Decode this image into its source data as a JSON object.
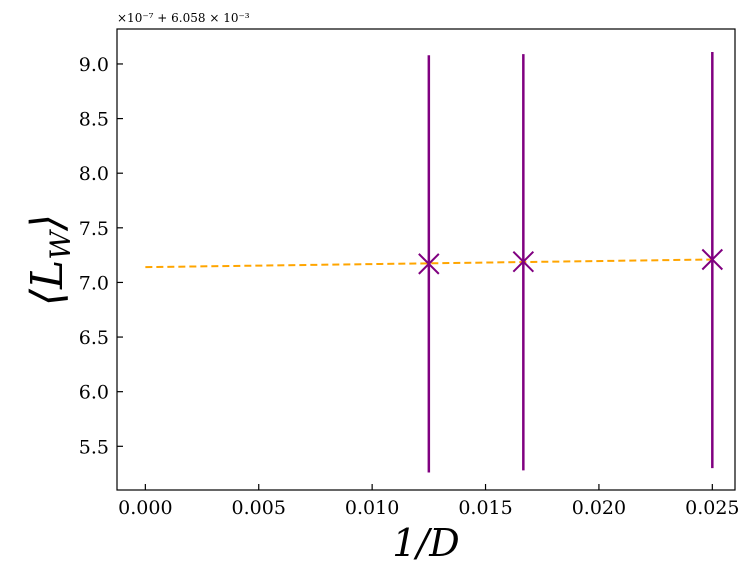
{
  "chart_data": {
    "type": "scatter",
    "title": "",
    "xlabel": "1/D",
    "ylabel": "⟨L",
    "ylabel_subscript": "W",
    "ylabel_close": "⟩",
    "offset_text": "×10⁻⁷ + 6.058 × 10⁻³",
    "xlim": [
      -0.00125,
      0.026
    ],
    "ylim": [
      5.1,
      9.32
    ],
    "xticks": [
      0.0,
      0.005,
      0.01,
      0.015,
      0.02,
      0.025
    ],
    "xtick_labels": [
      "0.000",
      "0.005",
      "0.010",
      "0.015",
      "0.020",
      "0.025"
    ],
    "yticks": [
      5.5,
      6.0,
      6.5,
      7.0,
      7.5,
      8.0,
      8.5,
      9.0
    ],
    "ytick_labels": [
      "5.5",
      "6.0",
      "6.5",
      "7.0",
      "7.5",
      "8.0",
      "8.5",
      "9.0"
    ],
    "grid": false,
    "series": [
      {
        "kind": "points-with-errorbars",
        "marker": "x",
        "color": "#800080",
        "x": [
          0.0125,
          0.016667,
          0.025
        ],
        "y": [
          7.17,
          7.19,
          7.21
        ],
        "yerr_low": [
          5.26,
          5.28,
          5.3
        ],
        "yerr_high": [
          9.08,
          9.09,
          9.11
        ]
      },
      {
        "kind": "fit-line",
        "style": "dashed",
        "color": "#FFA500",
        "x": [
          0.0,
          0.025
        ],
        "y": [
          7.14,
          7.21
        ]
      }
    ]
  }
}
